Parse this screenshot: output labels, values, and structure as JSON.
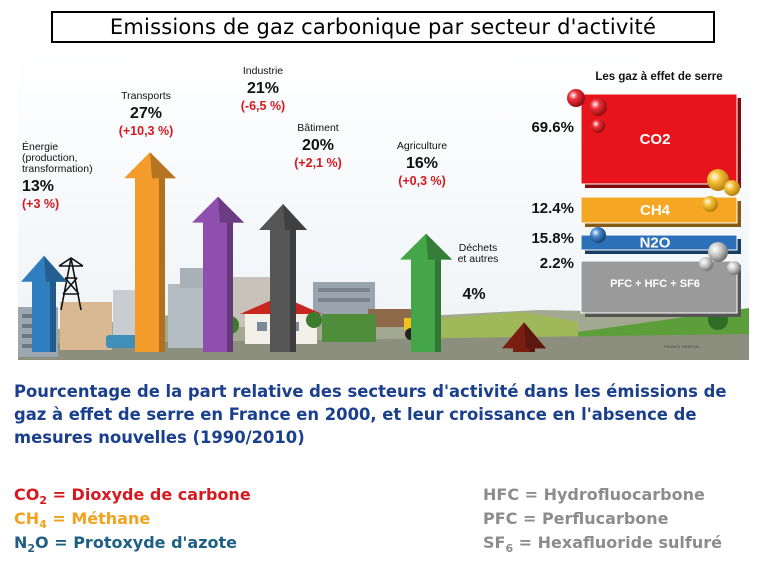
{
  "title": "Emissions de gaz carbonique par secteur d'activité",
  "chart_data": [
    {
      "type": "bar",
      "categories": [
        "Énergie (production, transformation)",
        "Transports",
        "Industrie",
        "Bâtiment",
        "Agriculture",
        "Déchets et autres"
      ],
      "values": [
        13,
        27,
        21,
        20,
        16,
        4
      ],
      "value_labels": [
        "13%",
        "27%",
        "21%",
        "20%",
        "16%",
        "4%"
      ],
      "growth_labels": [
        "(+3 %)",
        "(+10,3 %)",
        "(-6,5 %)",
        "(+2,1 %)",
        "(+0,3 %)",
        ""
      ],
      "colors": [
        "#2f7fc0",
        "#f39c2b",
        "#8e4fae",
        "#555555",
        "#44a648",
        "#7a1e12"
      ],
      "unit": "%"
    },
    {
      "type": "bar",
      "title": "Les gaz à effet de serre",
      "categories": [
        "CO2",
        "CH4",
        "N2O",
        "PFC + HFC + SF6"
      ],
      "values": [
        69.6,
        12.4,
        15.8,
        2.2
      ],
      "value_labels": [
        "69.6%",
        "12.4%",
        "15.8%",
        "2.2%"
      ],
      "colors": [
        "#e8141b",
        "#f5a623",
        "#2c70b8",
        "#9a9a9a"
      ],
      "unit": "%"
    }
  ],
  "caption": "Pourcentage de la part relative des secteurs d'activité dans les émissions de gaz à effet de serre en France en 2000, et leur croissance en l'absence de mesures nouvelles (1990/2010)",
  "legend_left": [
    {
      "symbol_main": "CO",
      "symbol_sub": "2",
      "text": " = Dioxyde de carbone",
      "color": "#d7181e"
    },
    {
      "symbol_main": "CH",
      "symbol_sub": "4",
      "text": " = Méthane",
      "color": "#f3a21d"
    },
    {
      "symbol_main": "N",
      "symbol_sub": "2",
      "symbol_after": "O",
      "text": " = Protoxyde d'azote",
      "color": "#1e5f86"
    }
  ],
  "legend_right": [
    {
      "text": "HFC = Hydrofluocarbone"
    },
    {
      "text": "PFC = Perflucarbone"
    },
    {
      "symbol_main": "SF",
      "symbol_sub": "6",
      "text": " = Hexafluoride sulfuré"
    }
  ],
  "legend_right_color": "#8c8c8c",
  "footer_credit": "FRANCE GRAPHIC"
}
